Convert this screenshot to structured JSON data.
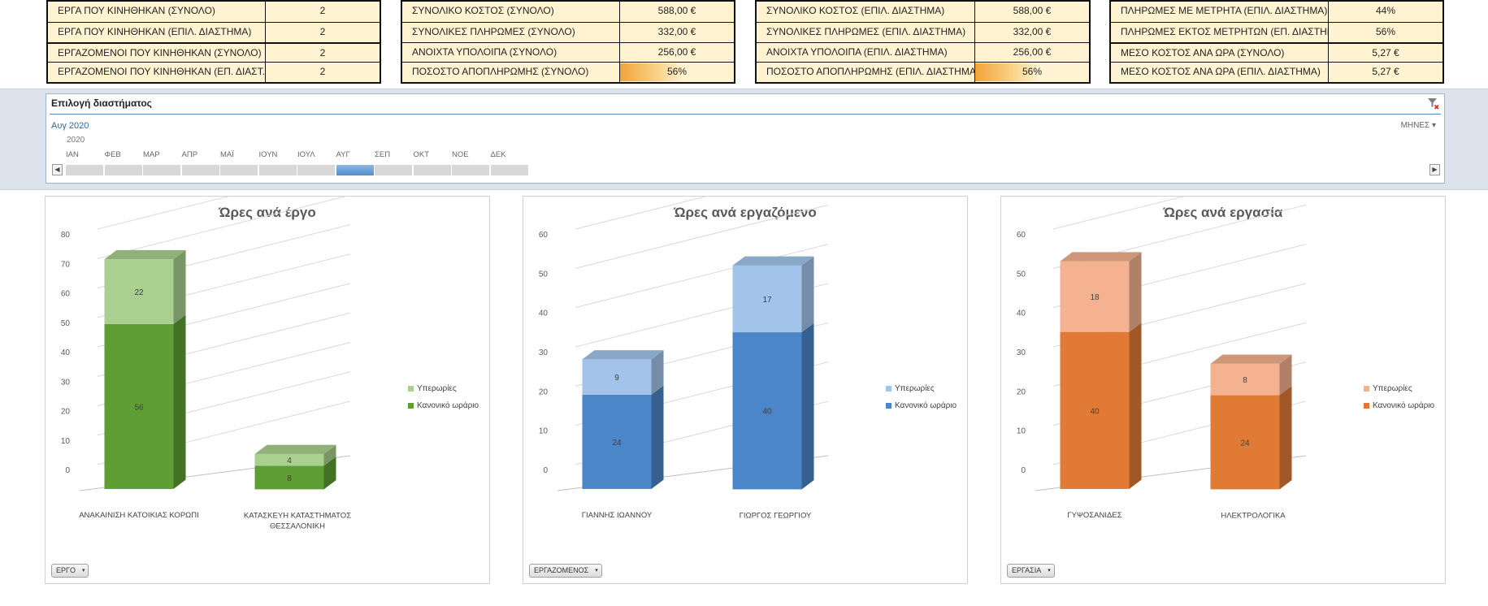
{
  "kpi_tables": [
    {
      "rows": [
        {
          "label": "ΕΡΓΑ ΠΟΥ ΚΙΝΗΘΗΚΑΝ (ΣΥΝΟΛΟ)",
          "value": "2"
        },
        {
          "label": "ΕΡΓΑ ΠΟΥ ΚΙΝΗΘΗΚΑΝ (ΕΠΙΛ. ΔΙΑΣΤΗΜΑ)",
          "value": "2"
        },
        {
          "label": "ΕΡΓΑΖΟΜΕΝΟΙ ΠΟΥ ΚΙΝΗΘΗΚΑΝ (ΣΥΝΟΛΟ)",
          "value": "2"
        },
        {
          "label": "ΕΡΓΑΖΟΜΕΝΟΙ ΠΟΥ ΚΙΝΗΘΗΚΑΝ (ΕΠ. ΔΙΑΣΤ.)",
          "value": "2"
        }
      ]
    },
    {
      "rows": [
        {
          "label": "ΣΥΝΟΛΙΚΟ ΚΟΣΤΟΣ (ΣΥΝΟΛΟ)",
          "value": "588,00 €"
        },
        {
          "label": "ΣΥΝΟΛΙΚΕΣ ΠΛΗΡΩΜΕΣ (ΣΥΝΟΛΟ)",
          "value": "332,00 €"
        },
        {
          "label": "ΑΝΟΙΧΤΑ ΥΠΟΛΟΙΠΑ (ΣΥΝΟΛΟ)",
          "value": "256,00 €"
        },
        {
          "label": "ΠΟΣΟΣΤΟ ΑΠΟΠΛΗΡΩΜΗΣ (ΣΥΝΟΛΟ)",
          "value": "56%",
          "fill": 0.56
        }
      ]
    },
    {
      "rows": [
        {
          "label": "ΣΥΝΟΛΙΚΟ ΚΟΣΤΟΣ (ΕΠΙΛ. ΔΙΑΣΤΗΜΑ)",
          "value": "588,00 €"
        },
        {
          "label": "ΣΥΝΟΛΙΚΕΣ ΠΛΗΡΩΜΕΣ (ΕΠΙΛ. ΔΙΑΣΤΗΜΑ)",
          "value": "332,00 €"
        },
        {
          "label": "ΑΝΟΙΧΤΑ ΥΠΟΛΟΙΠΑ (ΕΠΙΛ. ΔΙΑΣΤΗΜΑ)",
          "value": "256,00 €"
        },
        {
          "label": "ΠΟΣΟΣΤΟ ΑΠΟΠΛΗΡΩΜΗΣ (ΕΠΙΛ. ΔΙΑΣΤΗΜΑ)",
          "value": "56%",
          "fill": 0.56
        }
      ]
    },
    {
      "rows": [
        {
          "label": "ΠΛΗΡΩΜΕΣ ΜΕ ΜΕΤΡΗΤΑ (ΕΠΙΛ. ΔΙΑΣΤΗΜΑ)",
          "value": "44%"
        },
        {
          "label": "ΠΛΗΡΩΜΕΣ ΕΚΤΟΣ ΜΕΤΡΗΤΩΝ (ΕΠ. ΔΙΑΣΤΗΜΑ)",
          "value": "56%"
        },
        {
          "label": "ΜΕΣΟ ΚΟΣΤΟΣ ΑΝΑ ΩΡΑ (ΣΥΝΟΛΟ)",
          "value": "5,27 €"
        },
        {
          "label": "ΜΕΣΟ ΚΟΣΤΟΣ ΑΝΑ ΩΡΑ (ΕΠΙΛ. ΔΙΑΣΤΗΜΑ)",
          "value": "5,27 €"
        }
      ]
    }
  ],
  "timeline": {
    "title": "Επιλογή διαστήματος",
    "period": "Αυγ 2020",
    "level": "ΜΗΝΕΣ",
    "level_arrow": "▾",
    "year": "2020",
    "months": [
      "ΙΑΝ",
      "ΦΕΒ",
      "ΜΑΡ",
      "ΑΠΡ",
      "ΜΑΪ",
      "ΙΟΥΝ",
      "ΙΟΥΛ",
      "ΑΥΓ",
      "ΣΕΠ",
      "ΟΚΤ",
      "ΝΟΕ",
      "ΔΕΚ"
    ],
    "selected_month": "ΑΥΓ",
    "scroll_left": "◀",
    "scroll_right": "▶"
  },
  "chart_data": [
    {
      "type": "bar",
      "stacked": true,
      "three_d": true,
      "title": "Ώρες ανά έργο",
      "categories": [
        [
          "ΑΝΑΚΑΙΝΙΣΗ ΚΑΤΟΙΚΙΑΣ ΚΟΡΩΠΙ"
        ],
        [
          "ΚΑΤΑΣΚΕΥΗ ΚΑΤΑΣΤΗΜΑΤΟΣ",
          "ΘΕΣΣΑΛΟΝΙΚΗ"
        ]
      ],
      "series": [
        {
          "name": "Κανονικό ωράριο",
          "values": [
            56,
            8
          ]
        },
        {
          "name": "Υπερωρίες",
          "values": [
            22,
            4
          ]
        }
      ],
      "ylim": [
        0,
        80
      ],
      "yticks": [
        0,
        10,
        20,
        30,
        40,
        50,
        60,
        70,
        80
      ],
      "legend_order": [
        "Υπερωρίες",
        "Κανονικό ωράριο"
      ],
      "legend": "right",
      "colors": {
        "base": "#5e9e34",
        "over": "#a9d08e"
      },
      "filter_button": "ΕΡΓΟ",
      "filter_arrow": "▾"
    },
    {
      "type": "bar",
      "stacked": true,
      "three_d": true,
      "title": "Ώρες ανά εργαζόμενο",
      "categories": [
        [
          "ΓΙΑΝΝΗΣ ΙΩΑΝΝΟΥ"
        ],
        [
          "ΓΙΩΡΓΟΣ ΓΕΩΡΓΙΟΥ"
        ]
      ],
      "series": [
        {
          "name": "Κανονικό ωράριο",
          "values": [
            24,
            40
          ]
        },
        {
          "name": "Υπερωρίες",
          "values": [
            9,
            17
          ]
        }
      ],
      "ylim": [
        0,
        60
      ],
      "yticks": [
        0,
        10,
        20,
        30,
        40,
        50,
        60
      ],
      "legend_order": [
        "Υπερωρίες",
        "Κανονικό ωράριο"
      ],
      "legend": "right",
      "colors": {
        "base": "#4a86c8",
        "over": "#a3c4ea"
      },
      "filter_button": "ΕΡΓΑΖΟΜΕΝΟΣ",
      "filter_arrow": "▾"
    },
    {
      "type": "bar",
      "stacked": true,
      "three_d": true,
      "title": "Ώρες ανά εργασία",
      "categories": [
        [
          "ΓΥΨΟΣΑΝΙΔΕΣ"
        ],
        [
          "ΗΛΕΚΤΡΟΛΟΓΙΚΑ"
        ]
      ],
      "series": [
        {
          "name": "Κανονικό ωράριο",
          "values": [
            40,
            24
          ]
        },
        {
          "name": "Υπερωρίες",
          "values": [
            18,
            8
          ]
        }
      ],
      "ylim": [
        0,
        60
      ],
      "yticks": [
        0,
        10,
        20,
        30,
        40,
        50,
        60
      ],
      "legend_order": [
        "Υπερωρίες",
        "Κανονικό ωράριο"
      ],
      "legend": "right",
      "colors": {
        "base": "#e07a35",
        "over": "#f4b290"
      },
      "filter_button": "ΕΡΓΑΣΙΑ",
      "filter_arrow": "▾"
    }
  ]
}
